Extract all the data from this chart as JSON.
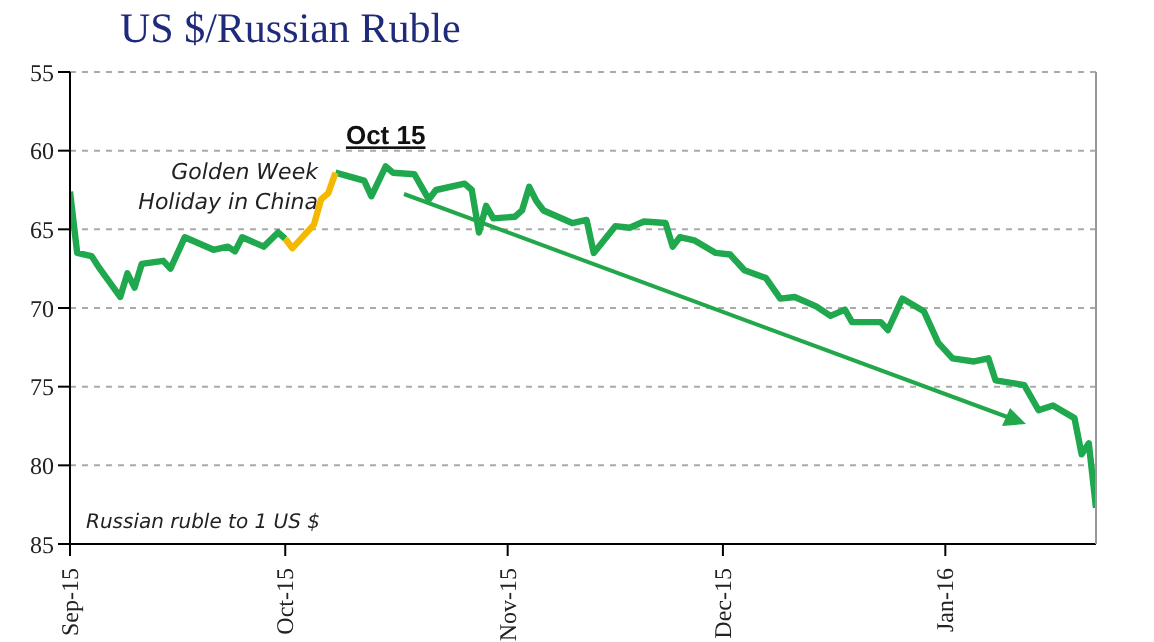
{
  "chart_data": {
    "type": "line",
    "title": "US $/Russian Ruble",
    "x": [
      "2015-09-01",
      "2015-09-02",
      "2015-09-04",
      "2015-09-05",
      "2015-09-08",
      "2015-09-09",
      "2015-09-10",
      "2015-09-11",
      "2015-09-14",
      "2015-09-15",
      "2015-09-17",
      "2015-09-21",
      "2015-09-23",
      "2015-09-24",
      "2015-09-25",
      "2015-09-28",
      "2015-09-30",
      "2015-10-01",
      "2015-10-02",
      "2015-10-05",
      "2015-10-06",
      "2015-10-07",
      "2015-10-08",
      "2015-10-12",
      "2015-10-13",
      "2015-10-15",
      "2015-10-16",
      "2015-10-19",
      "2015-10-21",
      "2015-10-22",
      "2015-10-26",
      "2015-10-27",
      "2015-10-28",
      "2015-10-29",
      "2015-10-30",
      "2015-11-02",
      "2015-11-03",
      "2015-11-04",
      "2015-11-05",
      "2015-11-06",
      "2015-11-10",
      "2015-11-12",
      "2015-11-13",
      "2015-11-16",
      "2015-11-18",
      "2015-11-20",
      "2015-11-23",
      "2015-11-24",
      "2015-11-25",
      "2015-11-27",
      "2015-11-30",
      "2015-12-02",
      "2015-12-04",
      "2015-12-07",
      "2015-12-09",
      "2015-12-11",
      "2015-12-14",
      "2015-12-16",
      "2015-12-18",
      "2015-12-19",
      "2015-12-23",
      "2015-12-24",
      "2015-12-26",
      "2015-12-29",
      "2015-12-31",
      "2016-01-02",
      "2016-01-05",
      "2016-01-07",
      "2016-01-08",
      "2016-01-12",
      "2016-01-14",
      "2016-01-16",
      "2016-01-19",
      "2016-01-20",
      "2016-01-21",
      "2016-01-22"
    ],
    "series": [
      {
        "color": "#1fa84e",
        "values": [
          62.6,
          66.5,
          66.7,
          67.4,
          69.3,
          67.8,
          68.7,
          67.2,
          67.0,
          67.5,
          65.5,
          66.3,
          66.1,
          66.4,
          65.5,
          66.1,
          65.2,
          65.6,
          null,
          null,
          null,
          null,
          61.4,
          61.9,
          62.9,
          61.0,
          61.4,
          61.5,
          63.1,
          62.5,
          62.1,
          62.5,
          65.2,
          63.5,
          64.3,
          64.2,
          63.8,
          62.3,
          63.2,
          63.8,
          64.6,
          64.4,
          66.5,
          64.8,
          64.9,
          64.5,
          64.6,
          66.1,
          65.5,
          65.7,
          66.5,
          66.6,
          67.6,
          68.1,
          69.4,
          69.3,
          69.9,
          70.5,
          70.1,
          70.9,
          70.9,
          71.4,
          69.4,
          70.2,
          72.2,
          73.2,
          73.4,
          73.2,
          74.6,
          74.9,
          76.5,
          76.2,
          77.0,
          79.3,
          78.6,
          82.7
        ]
      },
      {
        "color": "#f5b800",
        "values": [
          null,
          null,
          null,
          null,
          null,
          null,
          null,
          null,
          null,
          null,
          null,
          null,
          null,
          null,
          null,
          null,
          null,
          65.6,
          66.2,
          64.7,
          63.1,
          62.7,
          61.4,
          null,
          null,
          null,
          null,
          null,
          null,
          null,
          null,
          null,
          null,
          null,
          null,
          null,
          null,
          null,
          null,
          null,
          null,
          null,
          null,
          null,
          null,
          null,
          null,
          null,
          null,
          null,
          null,
          null,
          null,
          null,
          null,
          null,
          null,
          null,
          null,
          null,
          null,
          null,
          null,
          null,
          null,
          null,
          null,
          null,
          null,
          null,
          null,
          null,
          null,
          null,
          null,
          null
        ]
      }
    ],
    "xlim": [
      "2015-09-01",
      "2016-01-22"
    ],
    "xticks": [
      {
        "value": "2015-09-01",
        "label": "Sep-15"
      },
      {
        "value": "2015-10-01",
        "label": "Oct-15"
      },
      {
        "value": "2015-11-01",
        "label": "Nov-15"
      },
      {
        "value": "2015-12-01",
        "label": "Dec-15"
      },
      {
        "value": "2016-01-01",
        "label": "Jan-16"
      }
    ],
    "ylim": [
      85,
      55
    ],
    "yticks": [
      55,
      60,
      65,
      70,
      75,
      80,
      85
    ],
    "grid": "y",
    "marker": "none",
    "line_style": "solid",
    "annotations": [
      {
        "text": "Golden Week Holiday in China",
        "x": "2015-10-05",
        "y": 64.7
      },
      {
        "text": "Oct 15",
        "x": "2015-10-15",
        "y": 61.0
      },
      "Russian ruble to 1 US $"
    ]
  }
}
